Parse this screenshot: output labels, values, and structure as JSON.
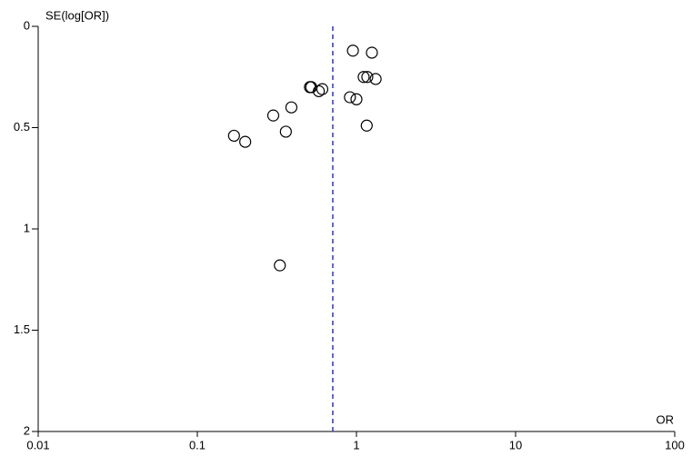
{
  "chart_data": {
    "type": "scatter",
    "y_label": "SE(log[OR])",
    "x_label": "OR",
    "x": [
      0.95,
      1.25,
      1.11,
      1.17,
      1.32,
      0.51,
      0.52,
      0.61,
      0.58,
      0.91,
      1.0,
      0.39,
      0.3,
      1.16,
      0.36,
      0.17,
      0.2,
      0.33
    ],
    "values": [
      0.12,
      0.13,
      0.25,
      0.25,
      0.26,
      0.3,
      0.3,
      0.31,
      0.32,
      0.35,
      0.36,
      0.4,
      0.44,
      0.49,
      0.52,
      0.54,
      0.57,
      1.18
    ],
    "summary_or": 0.71,
    "summary_color": "#3333cc",
    "xscale": "log",
    "xlim": [
      0.01,
      100
    ],
    "xticks": [
      0.01,
      0.1,
      1,
      10,
      100
    ],
    "ylim": [
      0,
      2
    ],
    "yticks": [
      0,
      0.5,
      1,
      1.5,
      2
    ],
    "y_inverted": true,
    "color": "#000000"
  }
}
